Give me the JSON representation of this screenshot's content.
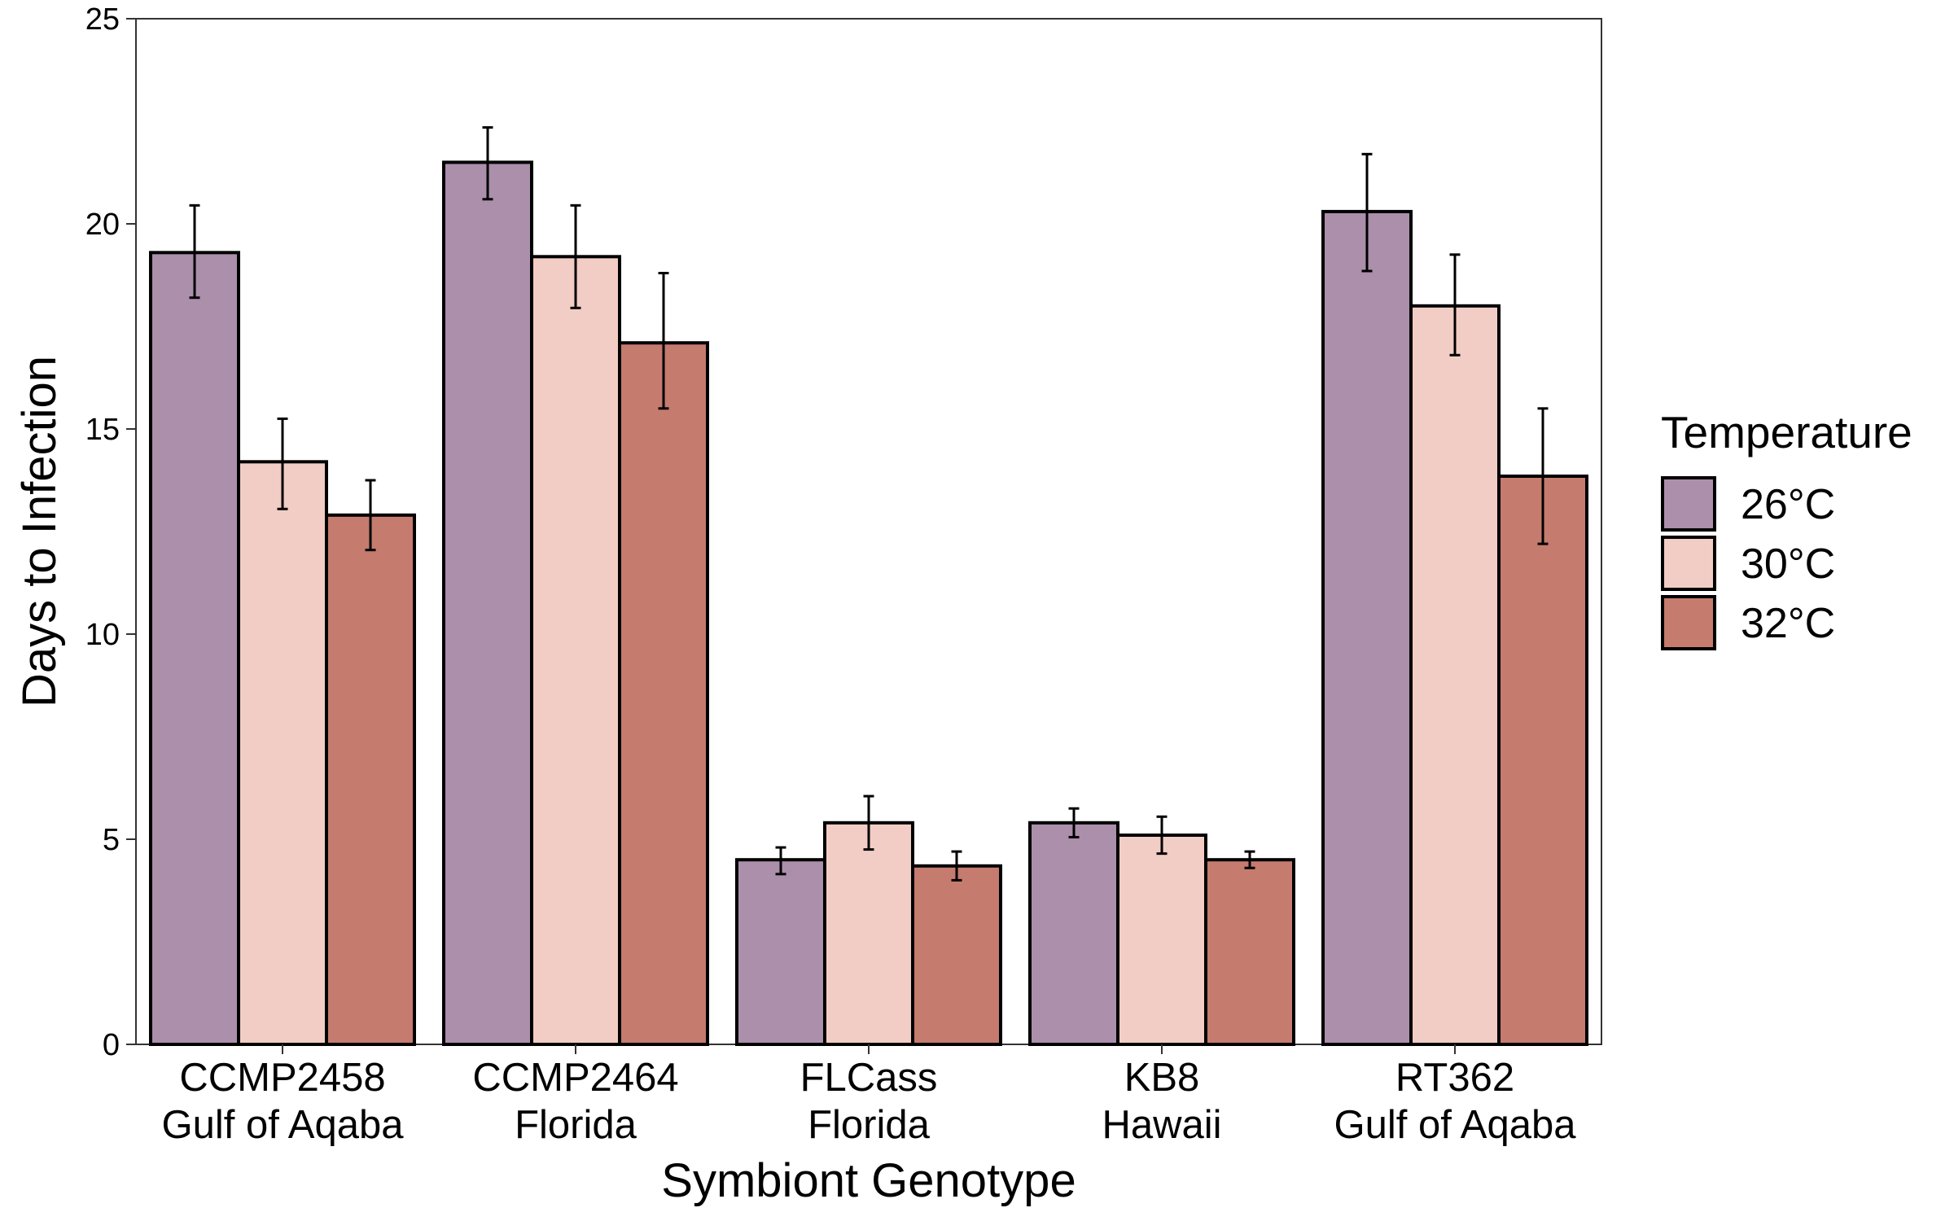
{
  "chart_data": {
    "type": "bar",
    "xlabel": "Symbiont Genotype",
    "ylabel": "Days to Infection",
    "ylim": [
      0,
      25
    ],
    "yticks": [
      0,
      5,
      10,
      15,
      20,
      25
    ],
    "grid": false,
    "legend": {
      "title": "Temperature",
      "placement": "right"
    },
    "categories": [
      {
        "line1": "CCMP2458",
        "line2": "Gulf of Aqaba"
      },
      {
        "line1": "CCMP2464",
        "line2": "Florida"
      },
      {
        "line1": "FLCass",
        "line2": "Florida"
      },
      {
        "line1": "KB8",
        "line2": "Hawaii"
      },
      {
        "line1": "RT362",
        "line2": "Gulf of Aqaba"
      }
    ],
    "series": [
      {
        "name": "26°C",
        "color": "#ab8fab",
        "values": [
          19.3,
          21.5,
          4.5,
          5.4,
          20.3
        ],
        "err_low": [
          18.2,
          20.6,
          4.15,
          5.05,
          18.85
        ],
        "err_high": [
          20.45,
          22.35,
          4.8,
          5.75,
          21.7
        ]
      },
      {
        "name": "30°C",
        "color": "#f2cdc5",
        "values": [
          14.2,
          19.2,
          5.4,
          5.1,
          18.0
        ],
        "err_low": [
          13.05,
          17.95,
          4.75,
          4.65,
          16.8
        ],
        "err_high": [
          15.25,
          20.45,
          6.05,
          5.55,
          19.25
        ]
      },
      {
        "name": "32°C",
        "color": "#c57b6e",
        "values": [
          12.9,
          17.1,
          4.35,
          4.5,
          13.85
        ],
        "err_low": [
          12.05,
          15.5,
          4.0,
          4.3,
          12.2
        ],
        "err_high": [
          13.75,
          18.8,
          4.7,
          4.7,
          15.5
        ]
      }
    ]
  }
}
